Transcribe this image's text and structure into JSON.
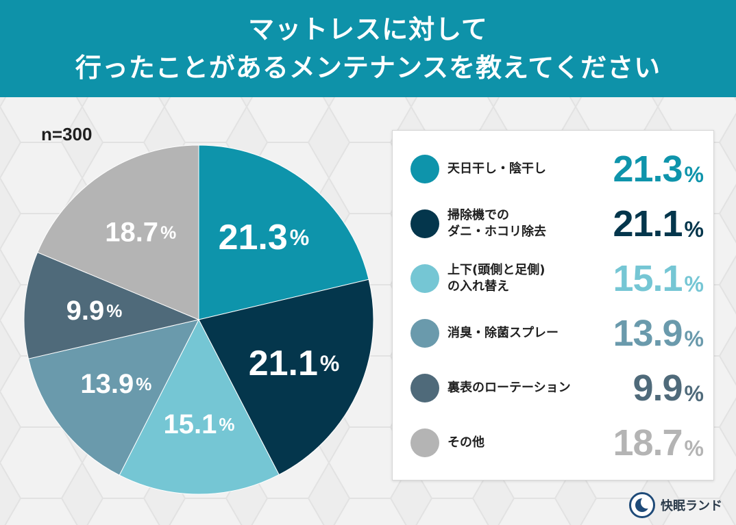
{
  "title": {
    "line1": "マットレスに対して",
    "line2": "行ったことがあるメンテナンスを教えてください"
  },
  "sample_size": "n=300",
  "colors": {
    "header": "#0e92a9",
    "background": "#ededed"
  },
  "chart_data": {
    "type": "pie",
    "title": "マットレスに対して行ったことがあるメンテナンスを教えてください",
    "n": 300,
    "unit": "%",
    "slices": [
      {
        "label": "天日干し・陰干し",
        "value": 21.3,
        "display": "21.3",
        "color": "#0e94ab"
      },
      {
        "label": "掃除機でのダニ・ホコリ除去",
        "value": 21.1,
        "display": "21.1",
        "color": "#04364c"
      },
      {
        "label": "上下(頭側と足側)の入れ替え",
        "value": 15.1,
        "display": "15.1",
        "color": "#75c6d4"
      },
      {
        "label": "消臭・除菌スプレー",
        "value": 13.9,
        "display": "13.9",
        "color": "#6a9aac"
      },
      {
        "label": "裏表のローテーション",
        "value": 9.9,
        "display": "9.9",
        "color": "#4f6a7a"
      },
      {
        "label": "その他",
        "value": 18.7,
        "display": "18.7",
        "color": "#b4b4b4"
      }
    ]
  },
  "legend": {
    "items": [
      {
        "lines": [
          "天日干し・陰干し"
        ],
        "value": "21.3",
        "pct": "%"
      },
      {
        "lines": [
          "掃除機での",
          "ダニ・ホコリ除去"
        ],
        "value": "21.1",
        "pct": "%"
      },
      {
        "lines": [
          "上下(頭側と足側)",
          "の入れ替え"
        ],
        "value": "15.1",
        "pct": "%"
      },
      {
        "lines": [
          "消臭・除菌スプレー"
        ],
        "value": "13.9",
        "pct": "%"
      },
      {
        "lines": [
          "裏表のローテーション"
        ],
        "value": "9.9",
        "pct": "%"
      },
      {
        "lines": [
          "その他"
        ],
        "value": "18.7",
        "pct": "%"
      }
    ]
  },
  "brand": {
    "name": "快眠ランド",
    "logo_icon": "kaimin-land-logo-icon"
  }
}
